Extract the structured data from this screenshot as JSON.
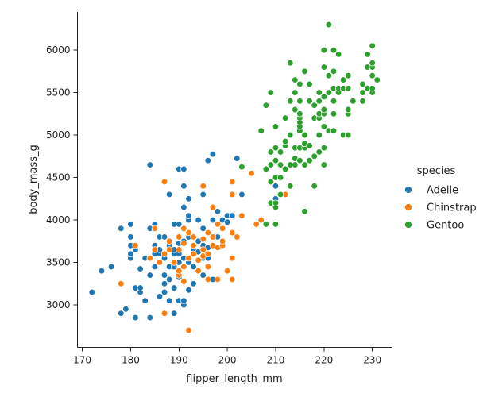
{
  "chart_data": {
    "type": "scatter",
    "title": "",
    "xlabel": "flipper_length_mm",
    "ylabel": "body_mass_g",
    "xlim": [
      169,
      234
    ],
    "ylim": [
      2500,
      6450
    ],
    "xticks": [
      "170",
      "180",
      "190",
      "200",
      "210",
      "220",
      "230"
    ],
    "yticks": [
      "3000",
      "3500",
      "4000",
      "4500",
      "5000",
      "5500",
      "6000"
    ],
    "grid": false,
    "legend": {
      "title": "species",
      "placement": "right"
    },
    "series": [
      {
        "name": "Adelie",
        "color": "#1f77b4",
        "points": [
          [
            172,
            3150
          ],
          [
            174,
            3400
          ],
          [
            176,
            3450
          ],
          [
            178,
            2900
          ],
          [
            178,
            3250
          ],
          [
            178,
            3900
          ],
          [
            179,
            2950
          ],
          [
            180,
            3550
          ],
          [
            180,
            3600
          ],
          [
            180,
            3700
          ],
          [
            180,
            3800
          ],
          [
            180,
            3950
          ],
          [
            181,
            2850
          ],
          [
            181,
            3200
          ],
          [
            181,
            3650
          ],
          [
            182,
            3150
          ],
          [
            182,
            3200
          ],
          [
            182,
            3425
          ],
          [
            183,
            3050
          ],
          [
            183,
            3550
          ],
          [
            184,
            2850
          ],
          [
            184,
            3350
          ],
          [
            184,
            3550
          ],
          [
            184,
            3900
          ],
          [
            184,
            4650
          ],
          [
            185,
            3450
          ],
          [
            185,
            3600
          ],
          [
            185,
            3700
          ],
          [
            185,
            3950
          ],
          [
            186,
            3100
          ],
          [
            186,
            3500
          ],
          [
            186,
            3600
          ],
          [
            186,
            3800
          ],
          [
            186,
            3650
          ],
          [
            187,
            3150
          ],
          [
            187,
            3250
          ],
          [
            187,
            3350
          ],
          [
            187,
            3550
          ],
          [
            187,
            3800
          ],
          [
            188,
            3050
          ],
          [
            188,
            3300
          ],
          [
            188,
            3450
          ],
          [
            188,
            3700
          ],
          [
            188,
            4300
          ],
          [
            189,
            2900
          ],
          [
            189,
            3200
          ],
          [
            189,
            3450
          ],
          [
            189,
            3600
          ],
          [
            189,
            3650
          ],
          [
            189,
            3950
          ],
          [
            190,
            3050
          ],
          [
            190,
            3325
          ],
          [
            190,
            3400
          ],
          [
            190,
            3500
          ],
          [
            190,
            3600
          ],
          [
            190,
            3725
          ],
          [
            190,
            3800
          ],
          [
            190,
            4600
          ],
          [
            190,
            3950
          ],
          [
            191,
            3000
          ],
          [
            191,
            3050
          ],
          [
            191,
            3550
          ],
          [
            191,
            3750
          ],
          [
            191,
            4150
          ],
          [
            191,
            4400
          ],
          [
            191,
            4600
          ],
          [
            192,
            3175
          ],
          [
            192,
            3500
          ],
          [
            192,
            3800
          ],
          [
            192,
            4000
          ],
          [
            192,
            4050
          ],
          [
            192,
            4250
          ],
          [
            193,
            3250
          ],
          [
            193,
            3450
          ],
          [
            193,
            3650
          ],
          [
            193,
            3800
          ],
          [
            194,
            3625
          ],
          [
            194,
            3750
          ],
          [
            194,
            4000
          ],
          [
            195,
            3350
          ],
          [
            195,
            3550
          ],
          [
            195,
            3700
          ],
          [
            195,
            3900
          ],
          [
            195,
            4300
          ],
          [
            195,
            4400
          ],
          [
            196,
            3550
          ],
          [
            196,
            3675
          ],
          [
            196,
            3850
          ],
          [
            196,
            4700
          ],
          [
            197,
            3300
          ],
          [
            197,
            4000
          ],
          [
            197,
            4775
          ],
          [
            198,
            3800
          ],
          [
            198,
            4100
          ],
          [
            199,
            4000
          ],
          [
            200,
            3975
          ],
          [
            200,
            4050
          ],
          [
            201,
            4050
          ],
          [
            202,
            4725
          ],
          [
            203,
            4300
          ],
          [
            210,
            4250
          ],
          [
            210,
            4400
          ]
        ]
      },
      {
        "name": "Chinstrap",
        "color": "#ff7f0e",
        "points": [
          [
            178,
            3250
          ],
          [
            181,
            3700
          ],
          [
            184,
            3550
          ],
          [
            185,
            3900
          ],
          [
            185,
            3650
          ],
          [
            186,
            3500
          ],
          [
            187,
            2900
          ],
          [
            187,
            3600
          ],
          [
            187,
            4450
          ],
          [
            188,
            3650
          ],
          [
            188,
            3750
          ],
          [
            189,
            3500
          ],
          [
            190,
            3350
          ],
          [
            190,
            3400
          ],
          [
            190,
            3650
          ],
          [
            190,
            3800
          ],
          [
            191,
            3275
          ],
          [
            191,
            3450
          ],
          [
            191,
            3725
          ],
          [
            191,
            3900
          ],
          [
            192,
            2700
          ],
          [
            192,
            3550
          ],
          [
            192,
            3850
          ],
          [
            193,
            3600
          ],
          [
            193,
            3700
          ],
          [
            193,
            3800
          ],
          [
            194,
            3400
          ],
          [
            194,
            3525
          ],
          [
            195,
            3575
          ],
          [
            195,
            3650
          ],
          [
            195,
            3775
          ],
          [
            195,
            4400
          ],
          [
            196,
            3300
          ],
          [
            196,
            3450
          ],
          [
            196,
            3600
          ],
          [
            196,
            3850
          ],
          [
            197,
            3700
          ],
          [
            197,
            3800
          ],
          [
            197,
            4150
          ],
          [
            198,
            3300
          ],
          [
            198,
            3675
          ],
          [
            198,
            3950
          ],
          [
            199,
            3700
          ],
          [
            199,
            3750
          ],
          [
            199,
            3900
          ],
          [
            200,
            3400
          ],
          [
            201,
            3300
          ],
          [
            201,
            3550
          ],
          [
            201,
            3850
          ],
          [
            201,
            4300
          ],
          [
            201,
            4450
          ],
          [
            202,
            3800
          ],
          [
            203,
            4050
          ],
          [
            205,
            4550
          ],
          [
            206,
            3950
          ],
          [
            207,
            4000
          ],
          [
            210,
            3950
          ],
          [
            212,
            4300
          ]
        ]
      },
      {
        "name": "Gentoo",
        "color": "#2ca02c",
        "points": [
          [
            203,
            4625
          ],
          [
            207,
            5050
          ],
          [
            208,
            3950
          ],
          [
            208,
            4600
          ],
          [
            208,
            5350
          ],
          [
            209,
            4200
          ],
          [
            209,
            4450
          ],
          [
            209,
            4650
          ],
          [
            209,
            4800
          ],
          [
            209,
            5500
          ],
          [
            210,
            3950
          ],
          [
            210,
            4150
          ],
          [
            210,
            4200
          ],
          [
            210,
            4500
          ],
          [
            210,
            4700
          ],
          [
            210,
            4850
          ],
          [
            210,
            5100
          ],
          [
            211,
            4300
          ],
          [
            211,
            4500
          ],
          [
            211,
            4650
          ],
          [
            211,
            4800
          ],
          [
            212,
            4600
          ],
          [
            212,
            4875
          ],
          [
            212,
            4925
          ],
          [
            212,
            5200
          ],
          [
            213,
            4400
          ],
          [
            213,
            4650
          ],
          [
            213,
            5000
          ],
          [
            213,
            5400
          ],
          [
            213,
            5850
          ],
          [
            214,
            4650
          ],
          [
            214,
            4725
          ],
          [
            214,
            4850
          ],
          [
            214,
            5300
          ],
          [
            214,
            5500
          ],
          [
            214,
            5650
          ],
          [
            215,
            4700
          ],
          [
            215,
            4850
          ],
          [
            215,
            5050
          ],
          [
            215,
            5100
          ],
          [
            215,
            5150
          ],
          [
            215,
            5200
          ],
          [
            215,
            5250
          ],
          [
            215,
            5400
          ],
          [
            215,
            5600
          ],
          [
            216,
            4100
          ],
          [
            216,
            4650
          ],
          [
            216,
            4850
          ],
          [
            216,
            4900
          ],
          [
            216,
            5000
          ],
          [
            216,
            5750
          ],
          [
            217,
            4700
          ],
          [
            217,
            4875
          ],
          [
            217,
            5400
          ],
          [
            217,
            5600
          ],
          [
            218,
            4400
          ],
          [
            218,
            4750
          ],
          [
            218,
            5200
          ],
          [
            218,
            5350
          ],
          [
            219,
            4800
          ],
          [
            219,
            5000
          ],
          [
            219,
            5200
          ],
          [
            219,
            5250
          ],
          [
            219,
            5400
          ],
          [
            219,
            5500
          ],
          [
            220,
            4650
          ],
          [
            220,
            4850
          ],
          [
            220,
            5100
          ],
          [
            220,
            5250
          ],
          [
            220,
            5300
          ],
          [
            220,
            5450
          ],
          [
            220,
            5800
          ],
          [
            220,
            6000
          ],
          [
            221,
            5050
          ],
          [
            221,
            5500
          ],
          [
            221,
            5700
          ],
          [
            221,
            6300
          ],
          [
            222,
            5050
          ],
          [
            222,
            5250
          ],
          [
            222,
            5400
          ],
          [
            222,
            5550
          ],
          [
            222,
            5750
          ],
          [
            222,
            6000
          ],
          [
            223,
            5500
          ],
          [
            223,
            5550
          ],
          [
            223,
            5950
          ],
          [
            224,
            5000
          ],
          [
            224,
            5550
          ],
          [
            224,
            5650
          ],
          [
            225,
            5000
          ],
          [
            225,
            5250
          ],
          [
            225,
            5300
          ],
          [
            225,
            5550
          ],
          [
            225,
            5700
          ],
          [
            226,
            5400
          ],
          [
            228,
            5400
          ],
          [
            228,
            5500
          ],
          [
            228,
            5600
          ],
          [
            229,
            5550
          ],
          [
            229,
            5800
          ],
          [
            229,
            5950
          ],
          [
            230,
            5500
          ],
          [
            230,
            5550
          ],
          [
            230,
            5700
          ],
          [
            230,
            5800
          ],
          [
            230,
            5850
          ],
          [
            230,
            6050
          ],
          [
            231,
            5650
          ]
        ]
      }
    ]
  }
}
